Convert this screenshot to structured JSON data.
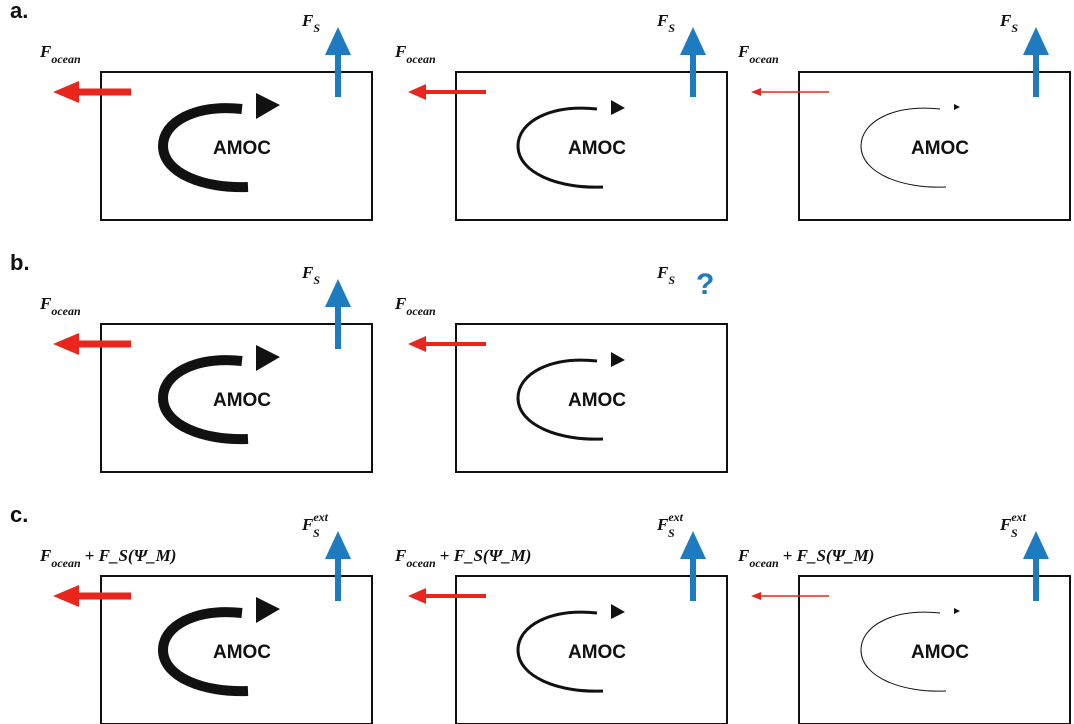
{
  "colors": {
    "ocean_arrow": "#e8261e",
    "salt_arrow": "#1f7bc0",
    "circulation": "#111111",
    "box": "#111111"
  },
  "panels": [
    {
      "label": "a.",
      "boxes": [
        {
          "amoc_label": "AMOC",
          "circulation_strength": "strong",
          "ocean_flux": {
            "main": "F",
            "sub": "ocean",
            "extra": ""
          },
          "ocean_arrow_strength": "strong",
          "salt_flux": {
            "main": "F",
            "sub": "S",
            "sup": "",
            "query": ""
          },
          "salt_arrow_shown": true
        },
        {
          "amoc_label": "AMOC",
          "circulation_strength": "medium",
          "ocean_flux": {
            "main": "F",
            "sub": "ocean",
            "extra": ""
          },
          "ocean_arrow_strength": "medium",
          "salt_flux": {
            "main": "F",
            "sub": "S",
            "sup": "",
            "query": ""
          },
          "salt_arrow_shown": true
        },
        {
          "amoc_label": "AMOC",
          "circulation_strength": "weak",
          "ocean_flux": {
            "main": "F",
            "sub": "ocean",
            "extra": ""
          },
          "ocean_arrow_strength": "weak",
          "salt_flux": {
            "main": "F",
            "sub": "S",
            "sup": "",
            "query": ""
          },
          "salt_arrow_shown": true
        }
      ]
    },
    {
      "label": "b.",
      "boxes": [
        {
          "amoc_label": "AMOC",
          "circulation_strength": "strong",
          "ocean_flux": {
            "main": "F",
            "sub": "ocean",
            "extra": ""
          },
          "ocean_arrow_strength": "strong",
          "salt_flux": {
            "main": "F",
            "sub": "S",
            "sup": "",
            "query": ""
          },
          "salt_arrow_shown": true
        },
        {
          "amoc_label": "AMOC",
          "circulation_strength": "medium",
          "ocean_flux": {
            "main": "F",
            "sub": "ocean",
            "extra": ""
          },
          "ocean_arrow_strength": "medium",
          "salt_flux": {
            "main": "F",
            "sub": "S",
            "sup": "",
            "query": "?"
          },
          "salt_arrow_shown": false
        }
      ]
    },
    {
      "label": "c.",
      "boxes": [
        {
          "amoc_label": "AMOC",
          "circulation_strength": "strong",
          "ocean_flux": {
            "main": "F",
            "sub": "ocean",
            "extra": "+ F_S(Ψ_M)"
          },
          "ocean_arrow_strength": "strong",
          "salt_flux": {
            "main": "F",
            "sub": "S",
            "sup": "ext",
            "query": ""
          },
          "salt_arrow_shown": true
        },
        {
          "amoc_label": "AMOC",
          "circulation_strength": "medium",
          "ocean_flux": {
            "main": "F",
            "sub": "ocean",
            "extra": "+ F_S(Ψ_M)"
          },
          "ocean_arrow_strength": "medium",
          "salt_flux": {
            "main": "F",
            "sub": "S",
            "sup": "ext",
            "query": ""
          },
          "salt_arrow_shown": true
        },
        {
          "amoc_label": "AMOC",
          "circulation_strength": "weak",
          "ocean_flux": {
            "main": "F",
            "sub": "ocean",
            "extra": "+ F_S(Ψ_M)"
          },
          "ocean_arrow_strength": "weak",
          "salt_flux": {
            "main": "F",
            "sub": "S",
            "sup": "ext",
            "query": ""
          },
          "salt_arrow_shown": true
        }
      ]
    }
  ]
}
